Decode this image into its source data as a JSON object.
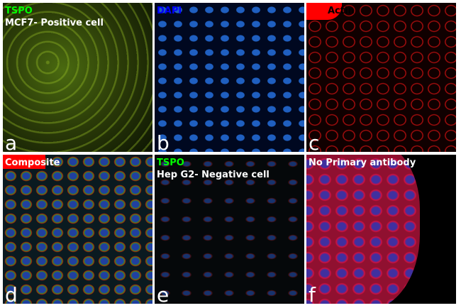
{
  "panels": [
    {
      "letter": "a",
      "label1": "TSPO",
      "label1_color": "#00ff00",
      "label2": "MCF7- Positive cell",
      "label2_color": "#ffffff"
    },
    {
      "letter": "b",
      "label1": "DAPI",
      "label1_color": "#0000ff"
    },
    {
      "letter": "c",
      "label1": "Actin",
      "label1_color": "#000000"
    },
    {
      "letter": "d",
      "label1": "Composite",
      "label1_color": "#ffffff"
    },
    {
      "letter": "e",
      "label1": "TSPO",
      "label1_color": "#00ff00",
      "label2": "Hep G2- Negative cell",
      "label2_color": "#ffffff"
    },
    {
      "letter": "f",
      "label1": "No Primary antibody",
      "label1_color": "#ffffff"
    }
  ]
}
